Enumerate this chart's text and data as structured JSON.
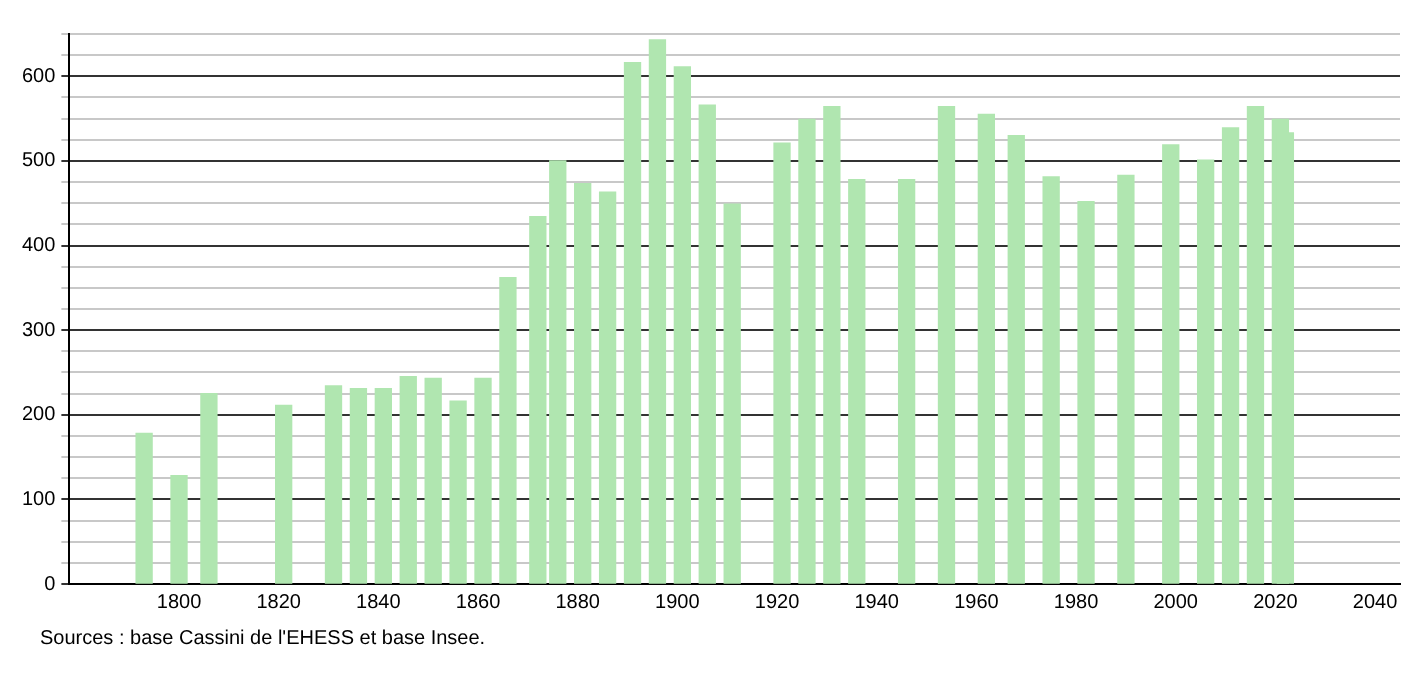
{
  "chart_data": {
    "type": "bar",
    "x": [
      1793,
      1800,
      1806,
      1821,
      1831,
      1836,
      1841,
      1846,
      1851,
      1856,
      1861,
      1866,
      1872,
      1876,
      1881,
      1886,
      1891,
      1896,
      1901,
      1906,
      1911,
      1921,
      1926,
      1931,
      1936,
      1946,
      1954,
      1962,
      1968,
      1975,
      1982,
      1990,
      1999,
      2006,
      2011,
      2016,
      2021,
      2022
    ],
    "values": [
      178,
      128,
      225,
      211,
      234,
      231,
      231,
      245,
      243,
      216,
      243,
      362,
      434,
      500,
      473,
      463,
      616,
      643,
      611,
      566,
      449,
      521,
      549,
      564,
      478,
      478,
      564,
      555,
      530,
      481,
      452,
      483,
      519,
      501,
      539,
      564,
      549,
      533
    ],
    "color": "#b0e6b0",
    "xlim": [
      1778,
      2045
    ],
    "xticks": [
      1800,
      1820,
      1840,
      1860,
      1880,
      1900,
      1920,
      1940,
      1960,
      1980,
      2000,
      2020,
      2040
    ],
    "ylim": [
      0,
      650
    ],
    "yticks": [
      0,
      {
        "value": 25,
        "label": null
      },
      {
        "value": 50,
        "label": null
      },
      {
        "value": 75,
        "label": null
      },
      100,
      {
        "value": 125,
        "label": null
      },
      {
        "value": 150,
        "label": null
      },
      {
        "value": 175,
        "label": null
      },
      200,
      {
        "value": 225,
        "label": null
      },
      {
        "value": 250,
        "label": null
      },
      {
        "value": 275,
        "label": null
      },
      300,
      {
        "value": 325,
        "label": null
      },
      {
        "value": 350,
        "label": null
      },
      {
        "value": 375,
        "label": null
      },
      400,
      {
        "value": 425,
        "label": null
      },
      {
        "value": 450,
        "label": null
      },
      {
        "value": 475,
        "label": null
      },
      500,
      {
        "value": 525,
        "label": null
      },
      {
        "value": 550,
        "label": null
      },
      {
        "value": 575,
        "label": null
      },
      600,
      {
        "value": 625,
        "label": null
      },
      {
        "value": 650,
        "label": null
      }
    ],
    "grid": "y",
    "annotations": [
      "Sources : base Cassini de l'EHESS et base Insee."
    ]
  }
}
